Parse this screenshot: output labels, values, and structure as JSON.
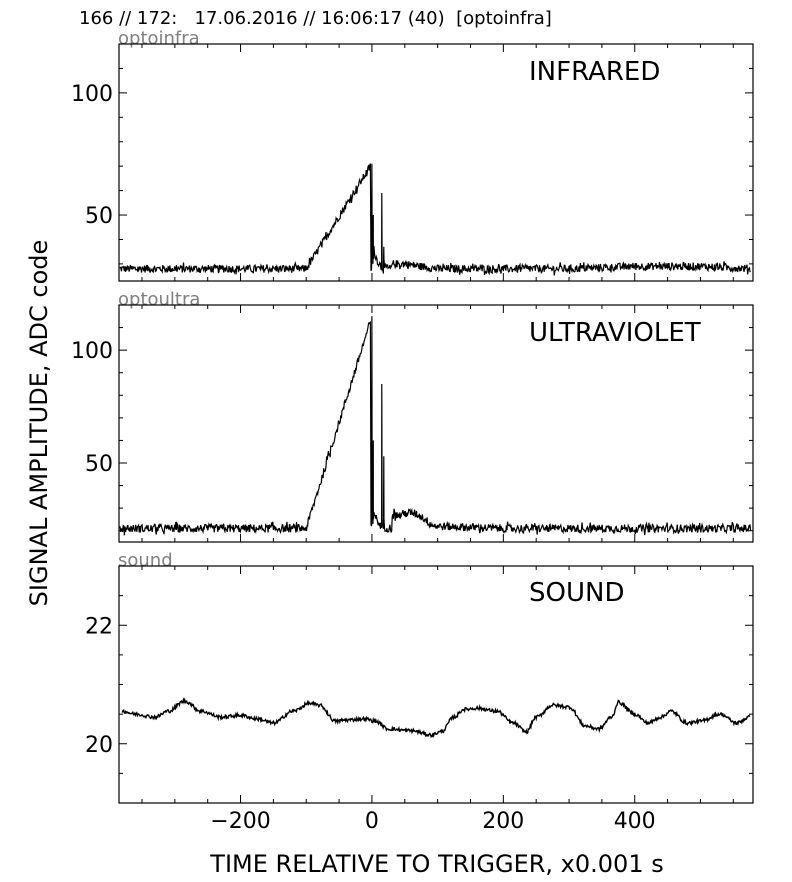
{
  "header": {
    "title": "166 // 172:   17.06.2016 // 16:06:17 (40)  [optoinfra]"
  },
  "colors": {
    "trace": "#000000",
    "channel_tag": "#808080",
    "frame": "#000000",
    "background": "#ffffff"
  },
  "chart_data": [
    {
      "type": "line",
      "channel_tag": "optoinfra",
      "panel_label": "INFRARED",
      "ylabel": "SIGNAL AMPLITUDE,  ADC code",
      "xlabel": "TIME RELATIVE TO TRIGGER,   x0.001 s",
      "xlim": [
        -385,
        580
      ],
      "ylim": [
        23,
        120
      ],
      "yticks": [
        50,
        100
      ],
      "xticks": [
        -200,
        0,
        200,
        400
      ],
      "show_xticklabels": false,
      "grid": false,
      "baseline": 28,
      "noise": 1.6,
      "spikes": [
        {
          "x": 0,
          "y": 71
        },
        {
          "x": 2,
          "y": 50
        },
        {
          "x": 15,
          "y": 59
        },
        {
          "x": 18,
          "y": 37
        }
      ],
      "series": [
        {
          "values_summary": "noisy baseline ~28 with sharp peaks near trigger",
          "x": [
            -385,
            -300,
            -200,
            -100,
            0,
            5,
            15,
            25,
            50,
            100,
            200,
            300,
            400,
            500,
            580
          ],
          "y": [
            28,
            28,
            28,
            28,
            71,
            32,
            59,
            30,
            30,
            28,
            28,
            28,
            29,
            29,
            28
          ]
        }
      ]
    },
    {
      "type": "line",
      "channel_tag": "optoultra",
      "panel_label": "ULTRAVIOLET",
      "xlim": [
        -385,
        580
      ],
      "ylim": [
        15,
        120
      ],
      "yticks": [
        50,
        100
      ],
      "xticks": [
        -200,
        0,
        200,
        400
      ],
      "show_xticklabels": false,
      "grid": false,
      "baseline": 21,
      "noise": 1.8,
      "spikes": [
        {
          "x": 0,
          "y": 115
        },
        {
          "x": 2,
          "y": 60
        },
        {
          "x": 15,
          "y": 85
        },
        {
          "x": 18,
          "y": 53
        }
      ],
      "series": [
        {
          "values_summary": "noisy baseline ~21 with peaks near trigger and small bump around 60",
          "x": [
            -385,
            -300,
            -200,
            -100,
            0,
            5,
            15,
            25,
            60,
            100,
            200,
            300,
            400,
            500,
            580
          ],
          "y": [
            21,
            21,
            21,
            21,
            115,
            35,
            85,
            28,
            25,
            22,
            21,
            21,
            21,
            21,
            21
          ]
        }
      ]
    },
    {
      "type": "line",
      "channel_tag": "sound",
      "panel_label": "SOUND",
      "xlim": [
        -385,
        580
      ],
      "ylim": [
        19,
        23
      ],
      "yticks": [
        20,
        22
      ],
      "xticks": [
        -200,
        0,
        200,
        400
      ],
      "xticklabels": [
        "−200",
        "0",
        "200",
        "400"
      ],
      "show_xticklabels": true,
      "grid": false,
      "noise": 0.03,
      "series": [
        {
          "x": [
            -380,
            -360,
            -330,
            -310,
            -285,
            -260,
            -230,
            -200,
            -175,
            -150,
            -120,
            -95,
            -80,
            -55,
            -40,
            -10,
            5,
            25,
            60,
            90,
            105,
            125,
            140,
            160,
            190,
            215,
            235,
            250,
            275,
            300,
            325,
            345,
            365,
            375,
            400,
            420,
            440,
            455,
            480,
            500,
            530,
            555,
            575
          ],
          "y": [
            20.55,
            20.5,
            20.45,
            20.55,
            20.72,
            20.55,
            20.45,
            20.48,
            20.42,
            20.35,
            20.55,
            20.68,
            20.65,
            20.38,
            20.4,
            20.42,
            20.38,
            20.25,
            20.22,
            20.15,
            20.2,
            20.45,
            20.58,
            20.6,
            20.55,
            20.35,
            20.2,
            20.45,
            20.65,
            20.62,
            20.3,
            20.25,
            20.45,
            20.7,
            20.5,
            20.35,
            20.45,
            20.55,
            20.35,
            20.38,
            20.5,
            20.35,
            20.45
          ]
        }
      ]
    }
  ]
}
